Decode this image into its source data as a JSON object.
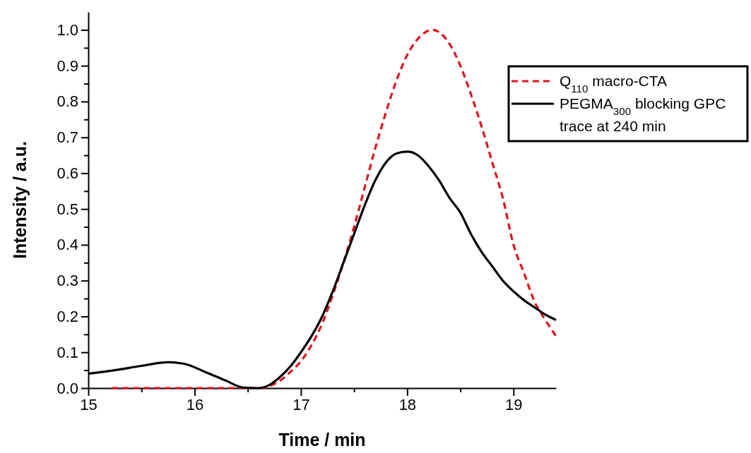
{
  "chart_data": {
    "type": "line",
    "xlabel": "Time / min",
    "ylabel": "Intensity / a.u.",
    "xlim": [
      15,
      19.4
    ],
    "xticks": [
      15,
      {
        "value": 15.5,
        "label": null
      },
      16,
      {
        "value": 16.5,
        "label": null
      },
      17,
      {
        "value": 17.5,
        "label": null
      },
      18,
      {
        "value": 18.5,
        "label": null
      },
      19
    ],
    "ylim": [
      0,
      1.05
    ],
    "yticks": [
      {
        "value": 0,
        "label": "0.0"
      },
      {
        "value": 0.05,
        "label": null
      },
      0.1,
      {
        "value": 0.15,
        "label": null
      },
      0.2,
      {
        "value": 0.25,
        "label": null
      },
      0.3,
      {
        "value": 0.35,
        "label": null
      },
      0.4,
      {
        "value": 0.45,
        "label": null
      },
      0.5,
      {
        "value": 0.55,
        "label": null
      },
      0.6,
      {
        "value": 0.65,
        "label": null
      },
      0.7,
      {
        "value": 0.75,
        "label": null
      },
      0.8,
      {
        "value": 0.85,
        "label": null
      },
      0.9,
      {
        "value": 0.95,
        "label": null
      },
      {
        "value": 1,
        "label": "1.0"
      }
    ],
    "legend": "top right",
    "grid": false,
    "series": [
      {
        "name": "Q$_{110}$ macro-CTA",
        "color": "#e0141e",
        "line_style": "dashed",
        "x": [
          15.22,
          15.5,
          16,
          16.5,
          16.6,
          16.7,
          16.8,
          16.9,
          17,
          17.1,
          17.2,
          17.3,
          17.4,
          17.5,
          17.6,
          17.7,
          17.8,
          17.9,
          18,
          18.1,
          18.24,
          18.4,
          18.5,
          18.6,
          18.7,
          18.8,
          18.9,
          19,
          19.1,
          19.2,
          19.3,
          19.4
        ],
        "values": [
          0,
          0,
          0,
          0,
          0,
          0.005,
          0.02,
          0.045,
          0.075,
          0.12,
          0.18,
          0.26,
          0.35,
          0.45,
          0.56,
          0.67,
          0.77,
          0.86,
          0.93,
          0.975,
          1,
          0.96,
          0.9,
          0.82,
          0.73,
          0.63,
          0.53,
          0.4,
          0.32,
          0.24,
          0.19,
          0.145
        ]
      },
      {
        "name": "PEGMA$_{300}$ blocking GPC trace at 240 min",
        "color": "#000000",
        "line_style": "solid",
        "x": [
          15,
          15.25,
          15.5,
          15.75,
          15.9,
          16.1,
          16.3,
          16.45,
          16.6,
          16.7,
          16.8,
          16.9,
          17,
          17.1,
          17.2,
          17.3,
          17.4,
          17.5,
          17.6,
          17.7,
          17.8,
          17.9,
          18,
          18.1,
          18.2,
          18.3,
          18.4,
          18.5,
          18.6,
          18.7,
          18.8,
          18.9,
          19,
          19.1,
          19.2,
          19.3,
          19.4
        ],
        "values": [
          0.04,
          0.05,
          0.062,
          0.072,
          0.068,
          0.045,
          0.02,
          0.002,
          0,
          0.008,
          0.03,
          0.06,
          0.1,
          0.145,
          0.2,
          0.27,
          0.35,
          0.43,
          0.51,
          0.58,
          0.63,
          0.655,
          0.66,
          0.65,
          0.62,
          0.58,
          0.53,
          0.49,
          0.43,
          0.38,
          0.34,
          0.3,
          0.27,
          0.245,
          0.225,
          0.205,
          0.19
        ]
      }
    ]
  }
}
